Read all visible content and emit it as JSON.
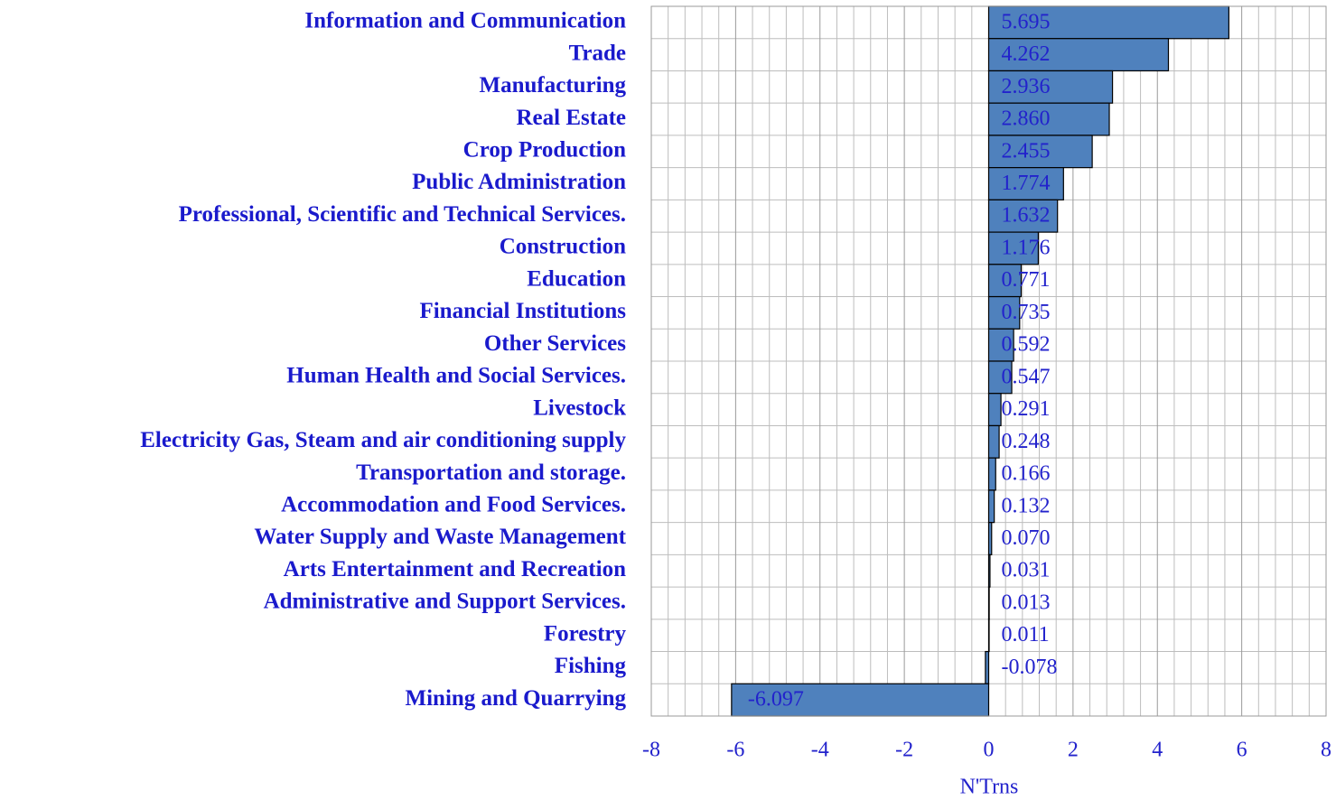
{
  "chart_data": {
    "type": "barh",
    "categories": [
      "Information and Communication",
      "Trade",
      "Manufacturing",
      "Real Estate",
      "Crop Production",
      "Public Administration",
      "Professional, Scientific and Technical Services.",
      "Construction",
      "Education",
      "Financial  Institutions",
      "Other Services",
      "Human Health and Social Services.",
      "Livestock",
      "Electricity Gas, Steam and air conditioning supply",
      "Transportation and storage.",
      "Accommodation and Food Services.",
      "Water Supply and Waste Management",
      "Arts Entertainment and Recreation",
      "Administrative and Support Services.",
      "Forestry",
      "Fishing",
      "Mining and  Quarrying"
    ],
    "values": [
      5.695,
      4.262,
      2.936,
      2.86,
      2.455,
      1.774,
      1.632,
      1.176,
      0.771,
      0.735,
      0.592,
      0.547,
      0.291,
      0.248,
      0.166,
      0.132,
      0.07,
      0.031,
      0.013,
      0.011,
      -0.078,
      -6.097
    ],
    "value_labels": [
      "5.695",
      "4.262",
      "2.936",
      "2.860",
      "2.455",
      "1.774",
      "1.632",
      "1.176",
      "0.771",
      "0.735",
      "0.592",
      "0.547",
      "0.291",
      "0.248",
      "0.166",
      "0.132",
      "0.070",
      "0.031",
      "0.013",
      "0.011",
      "-0.078",
      "-6.097"
    ],
    "color": "#4f81bd",
    "xlabel": "N'Trns",
    "xlim": [
      -8,
      8
    ],
    "xticks": [
      -8,
      -6,
      -4,
      -2,
      0,
      2,
      4,
      6,
      8
    ],
    "grid": true
  }
}
